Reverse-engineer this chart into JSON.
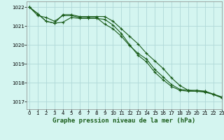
{
  "title": "Graphe pression niveau de la mer (hPa)",
  "title_fontsize": 6.5,
  "bg_color": "#d4f5f0",
  "grid_color": "#b0d8d8",
  "line_color": "#1a5c1a",
  "marker_color": "#1a5c1a",
  "xlim": [
    -0.3,
    23
  ],
  "ylim": [
    1016.6,
    1022.3
  ],
  "yticks": [
    1017,
    1018,
    1019,
    1020,
    1021,
    1022
  ],
  "xticks": [
    0,
    1,
    2,
    3,
    4,
    5,
    6,
    7,
    8,
    9,
    10,
    11,
    12,
    13,
    14,
    15,
    16,
    17,
    18,
    19,
    20,
    21,
    22,
    23
  ],
  "tick_fontsize": 5.0,
  "series": [
    [
      1022.0,
      1021.55,
      1021.45,
      1021.25,
      1021.55,
      1021.55,
      1021.45,
      1021.45,
      1021.45,
      1021.1,
      1020.85,
      1020.45,
      1019.95,
      1019.55,
      1019.25,
      1018.7,
      1018.3,
      1017.9,
      1017.65,
      1017.6,
      1017.6,
      1017.55,
      1017.4,
      1017.25
    ],
    [
      1022.0,
      1021.65,
      1021.25,
      1021.15,
      1021.2,
      1021.45,
      1021.4,
      1021.4,
      1021.4,
      1021.35,
      1021.05,
      1020.6,
      1020.0,
      1019.45,
      1019.1,
      1018.55,
      1018.15,
      1017.8,
      1017.6,
      1017.55,
      1017.55,
      1017.5,
      1017.38,
      1017.2
    ],
    [
      1022.0,
      1021.65,
      1021.25,
      1021.15,
      1021.6,
      1021.6,
      1021.5,
      1021.5,
      1021.5,
      1021.5,
      1021.25,
      1020.85,
      1020.45,
      1020.05,
      1019.55,
      1019.15,
      1018.75,
      1018.25,
      1017.85,
      1017.6,
      1017.55,
      1017.55,
      1017.38,
      1017.22
    ]
  ],
  "spine_color": "#888888"
}
